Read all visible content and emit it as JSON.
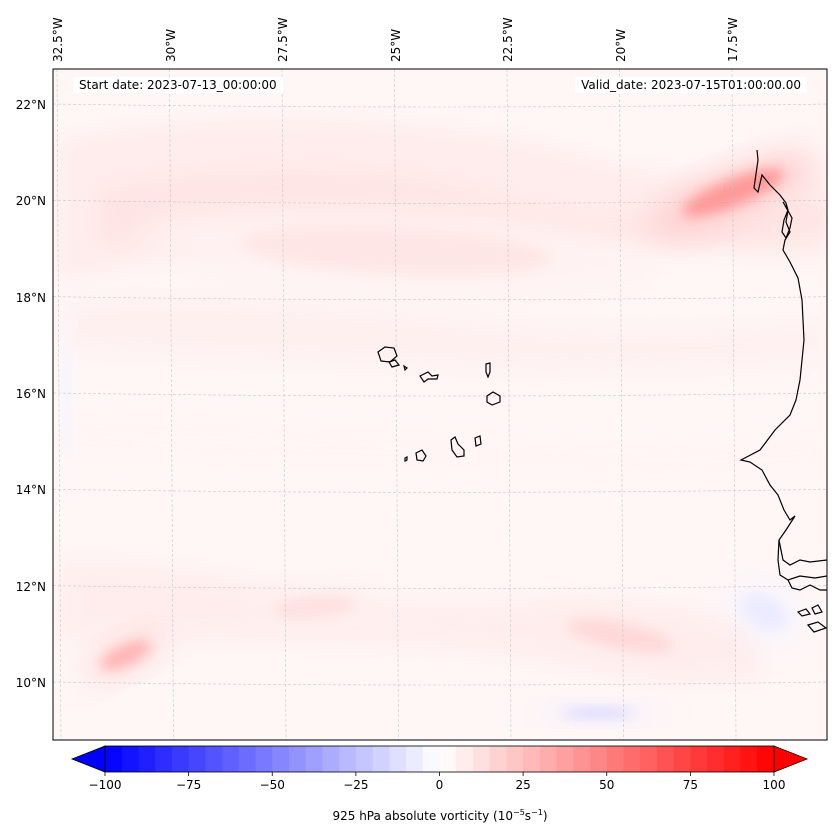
{
  "figure": {
    "start_date_label": "Start date: 2023-07-13_00:00:00",
    "valid_date_label": "Valid_date: 2023-07-15T01:00:00.00",
    "colorbar_title_prefix": "925 hPa absolute vorticity (10",
    "colorbar_title_exp1": "−5",
    "colorbar_title_mid": "s",
    "colorbar_title_exp2": "−1",
    "colorbar_title_suffix": ")"
  },
  "chart_data": {
    "type": "heatmap",
    "title": "925 hPa absolute vorticity",
    "variable": "absolute vorticity",
    "level": "925 hPa",
    "units": "10^-5 s^-1",
    "start_date": "2023-07-13_00:00:00",
    "valid_date": "2023-07-15T01:00:00.00",
    "extent": {
      "lon": [
        -32.6,
        -16.1
      ],
      "lat": [
        8.9,
        22.8
      ]
    },
    "lon_ticks": [
      "32.5°W",
      "30°W",
      "27.5°W",
      "25°W",
      "22.5°W",
      "20°W",
      "17.5°W"
    ],
    "lon_tick_values": [
      -32.5,
      -30,
      -27.5,
      -25,
      -22.5,
      -20,
      -17.5
    ],
    "lat_ticks": [
      "22°N",
      "20°N",
      "18°N",
      "16°N",
      "14°N",
      "12°N",
      "10°N"
    ],
    "lat_tick_values": [
      22,
      20,
      18,
      16,
      14,
      12,
      10
    ],
    "grid": true,
    "colormap": "bwr",
    "colorbar": {
      "orientation": "horizontal",
      "placement": "bottom",
      "range": [
        -100,
        100
      ],
      "extend": "both",
      "levels_step": 5,
      "ticks": [
        -100,
        -75,
        -50,
        -25,
        0,
        25,
        50,
        75,
        100
      ],
      "tick_labels": [
        "−100",
        "−75",
        "−50",
        "−25",
        "0",
        "25",
        "50",
        "75",
        "100"
      ],
      "label": "925 hPa absolute vorticity (10^-5 s^-1)"
    },
    "features": [
      {
        "name": "NE vorticity maximum off Mauritania coast",
        "lon": -17.5,
        "lat": 20.2,
        "value": 40
      },
      {
        "name": "SW vorticity maximum",
        "lon": -31.0,
        "lat": 10.6,
        "value": 30
      },
      {
        "name": "broad positive band",
        "lon": -25.0,
        "lat": 19.0,
        "value": 10
      },
      {
        "name": "central positive patch",
        "lon": -26.8,
        "lat": 11.6,
        "value": 12
      },
      {
        "name": "SE positive patch",
        "lon": -20.0,
        "lat": 11.0,
        "value": 15
      },
      {
        "name": "negative minimum south",
        "lon": -20.5,
        "lat": 9.4,
        "value": -15
      },
      {
        "name": "negative strip west edge",
        "lon": -32.3,
        "lat": 16.0,
        "value": -5
      },
      {
        "name": "negative area near Guinea coast",
        "lon": -16.8,
        "lat": 11.5,
        "value": -8
      }
    ],
    "coastline": "Cape Verde islands and West African coast (Mauritania, Senegal, Gambia, Guinea-Bissau)"
  }
}
